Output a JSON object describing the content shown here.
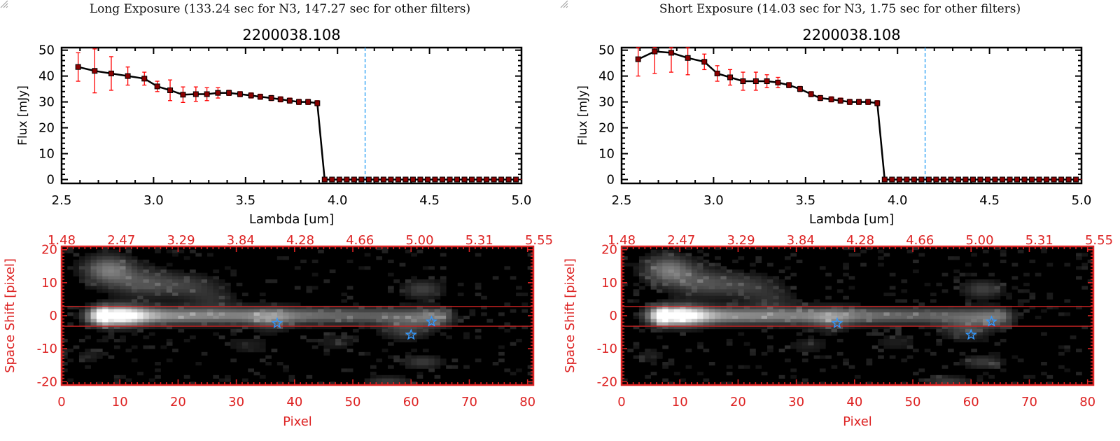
{
  "panels": [
    {
      "panel_title": "Long Exposure (133.24 sec for N3, 147.27 sec for other filters)",
      "spectrum": {
        "type": "line",
        "title": "2200038.108",
        "xlabel": "Lambda [um]",
        "ylabel": "Flux [mJy]",
        "xlim": [
          2.5,
          5.0
        ],
        "ylim": [
          -1.5,
          51
        ],
        "xticks": [
          "2.5",
          "3.0",
          "3.5",
          "4.0",
          "4.5",
          "5.0"
        ],
        "yticks": [
          "0",
          "10",
          "20",
          "30",
          "40",
          "50"
        ],
        "marker_line_x": 4.15,
        "x": [
          2.59,
          2.68,
          2.77,
          2.86,
          2.95,
          3.02,
          3.09,
          3.16,
          3.23,
          3.29,
          3.35,
          3.41,
          3.47,
          3.53,
          3.58,
          3.64,
          3.69,
          3.74,
          3.79,
          3.84,
          3.89,
          3.93,
          3.97,
          4.01,
          4.05,
          4.09,
          4.13,
          4.17,
          4.21,
          4.25,
          4.29,
          4.33,
          4.37,
          4.41,
          4.45,
          4.49,
          4.53,
          4.57,
          4.61,
          4.65,
          4.69,
          4.73,
          4.77,
          4.81,
          4.85,
          4.89,
          4.93,
          4.97
        ],
        "y": [
          43.5,
          42,
          41,
          40,
          39,
          36,
          34.5,
          32.8,
          33,
          33,
          33.5,
          33.5,
          33,
          32.5,
          32,
          31.5,
          31,
          30.5,
          30,
          30,
          29.5,
          0,
          0,
          0,
          0,
          0,
          0,
          0,
          0,
          0,
          0,
          0,
          0,
          0,
          0,
          0,
          0,
          0,
          0,
          0,
          0,
          0,
          0,
          0,
          0,
          0,
          0,
          0
        ],
        "yerr": [
          5.5,
          8.5,
          6.5,
          3.5,
          2.5,
          2,
          4,
          3,
          2.8,
          2.5,
          2,
          1,
          1,
          1,
          1,
          1,
          1,
          1,
          1,
          1,
          1,
          0.5,
          0.5,
          0.5,
          0.5,
          0.5,
          0.5,
          0.5,
          0.5,
          0.5,
          0.5,
          0.5,
          0.5,
          0.5,
          0.5,
          0.5,
          0.5,
          0.5,
          0.5,
          0.5,
          0.5,
          0.5,
          0.5,
          0.5,
          0.5,
          0.5,
          0.5,
          0.5
        ]
      },
      "image": {
        "type": "heatmap",
        "xlabel": "Pixel",
        "ylabel": "Space Shift [pixel]",
        "xlim": [
          0,
          81
        ],
        "ylim": [
          -21,
          21
        ],
        "xticks": [
          "0",
          "10",
          "20",
          "30",
          "40",
          "50",
          "60",
          "70",
          "80"
        ],
        "yticks": [
          "20",
          "10",
          "0",
          "-10",
          "-20"
        ],
        "top_ticks": [
          "1.48",
          "2.47",
          "3.29",
          "3.84",
          "4.28",
          "4.66",
          "5.00",
          "5.31",
          "5.55"
        ],
        "aperture_y": [
          2.8,
          -3.2
        ],
        "stars": [
          [
            37,
            -2.3
          ],
          [
            60,
            -5.8
          ],
          [
            63.5,
            -1.8
          ]
        ]
      }
    },
    {
      "panel_title": "Short Exposure (14.03 sec for N3, 1.75 sec for other filters)",
      "spectrum": {
        "type": "line",
        "title": "2200038.108",
        "xlabel": "Lambda [um]",
        "ylabel": "Flux [mJy]",
        "xlim": [
          2.5,
          5.0
        ],
        "ylim": [
          -1.5,
          51
        ],
        "xticks": [
          "2.5",
          "3.0",
          "3.5",
          "4.0",
          "4.5",
          "5.0"
        ],
        "yticks": [
          "0",
          "10",
          "20",
          "30",
          "40",
          "50"
        ],
        "marker_line_x": 4.15,
        "x": [
          2.59,
          2.68,
          2.77,
          2.86,
          2.95,
          3.02,
          3.09,
          3.16,
          3.23,
          3.29,
          3.35,
          3.41,
          3.47,
          3.53,
          3.58,
          3.64,
          3.69,
          3.74,
          3.79,
          3.84,
          3.89,
          3.93,
          3.97,
          4.01,
          4.05,
          4.09,
          4.13,
          4.17,
          4.21,
          4.25,
          4.29,
          4.33,
          4.37,
          4.41,
          4.45,
          4.49,
          4.53,
          4.57,
          4.61,
          4.65,
          4.69,
          4.73,
          4.77,
          4.81,
          4.85,
          4.89,
          4.93,
          4.97
        ],
        "y": [
          46.5,
          49.5,
          49,
          47,
          45.5,
          41,
          39.5,
          38,
          38,
          38,
          37.5,
          36.5,
          35,
          33,
          31.5,
          31,
          30.5,
          30,
          30,
          30,
          29.5,
          0,
          0,
          0,
          0,
          0,
          0,
          0,
          0,
          0,
          0,
          0,
          0,
          0,
          0,
          0,
          0,
          0,
          0,
          0,
          0,
          0,
          0,
          0,
          0,
          0,
          0,
          0
        ],
        "yerr": [
          6.5,
          8.5,
          7.5,
          6.5,
          3,
          3,
          3,
          3.5,
          3.5,
          2.5,
          2,
          1,
          1,
          1,
          1,
          1,
          1,
          1,
          1,
          1,
          1,
          0.5,
          0.5,
          0.5,
          0.5,
          0.5,
          0.5,
          0.5,
          0.5,
          0.5,
          0.5,
          0.5,
          0.5,
          0.5,
          0.5,
          0.5,
          0.5,
          0.5,
          0.5,
          0.5,
          0.5,
          0.5,
          0.5,
          0.5,
          0.5,
          0.5,
          0.5,
          0.5
        ]
      },
      "image": {
        "type": "heatmap",
        "xlabel": "Pixel",
        "ylabel": "Space Shift [pixel]",
        "xlim": [
          0,
          81
        ],
        "ylim": [
          -21,
          21
        ],
        "xticks": [
          "0",
          "10",
          "20",
          "30",
          "40",
          "50",
          "60",
          "70",
          "80"
        ],
        "yticks": [
          "20",
          "10",
          "0",
          "-10",
          "-20"
        ],
        "top_ticks": [
          "1.48",
          "2.47",
          "3.29",
          "3.84",
          "4.28",
          "4.66",
          "5.00",
          "5.31",
          "5.55"
        ],
        "aperture_y": [
          2.8,
          -3.2
        ],
        "stars": [
          [
            37,
            -2.3
          ],
          [
            60,
            -5.8
          ],
          [
            63.5,
            -1.8
          ]
        ]
      }
    }
  ],
  "colors": {
    "axis": "#000000",
    "line": "#000000",
    "marker": "#8b0000",
    "errorbar": "#ff0000",
    "marker_line": "#3fa9f5",
    "image_axis": "#dd2222",
    "aperture": "#cc2222",
    "star": "#3399ff"
  }
}
